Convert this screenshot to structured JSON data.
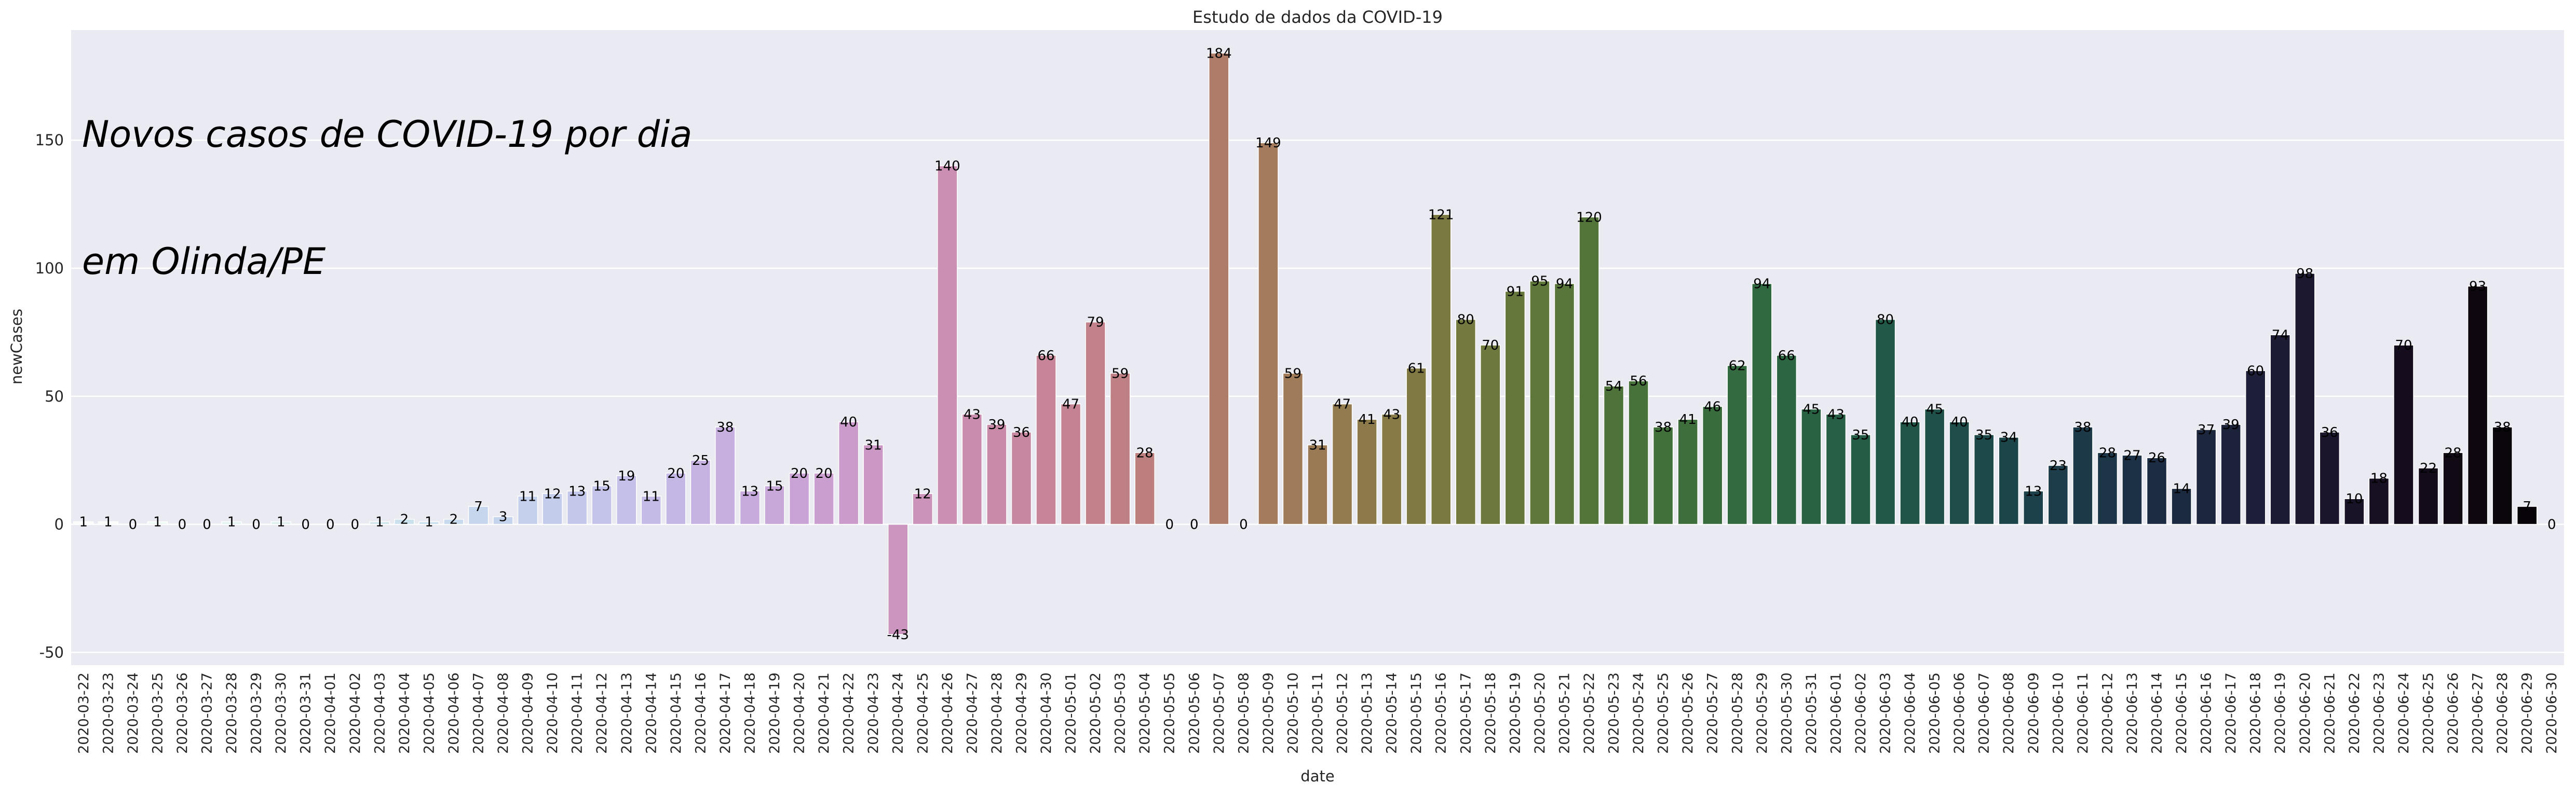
{
  "chart_data": {
    "type": "bar",
    "title": "Estudo de dados da COVID-19",
    "annotation_lines": [
      "Novos casos de COVID-19 por dia",
      "em Olinda/PE"
    ],
    "xlabel": "date",
    "ylabel": "newCases",
    "ylim": [
      -55,
      193
    ],
    "yticks": [
      -50,
      0,
      50,
      100,
      150
    ],
    "grid": true,
    "legend": "none",
    "categories": [
      "2020-03-22",
      "2020-03-23",
      "2020-03-24",
      "2020-03-25",
      "2020-03-26",
      "2020-03-27",
      "2020-03-28",
      "2020-03-29",
      "2020-03-30",
      "2020-03-31",
      "2020-04-01",
      "2020-04-02",
      "2020-04-03",
      "2020-04-04",
      "2020-04-05",
      "2020-04-06",
      "2020-04-07",
      "2020-04-08",
      "2020-04-09",
      "2020-04-10",
      "2020-04-11",
      "2020-04-12",
      "2020-04-13",
      "2020-04-14",
      "2020-04-15",
      "2020-04-16",
      "2020-04-17",
      "2020-04-18",
      "2020-04-19",
      "2020-04-20",
      "2020-04-21",
      "2020-04-22",
      "2020-04-23",
      "2020-04-24",
      "2020-04-25",
      "2020-04-26",
      "2020-04-27",
      "2020-04-28",
      "2020-04-29",
      "2020-04-30",
      "2020-05-01",
      "2020-05-02",
      "2020-05-03",
      "2020-05-04",
      "2020-05-05",
      "2020-05-06",
      "2020-05-07",
      "2020-05-08",
      "2020-05-09",
      "2020-05-10",
      "2020-05-11",
      "2020-05-12",
      "2020-05-13",
      "2020-05-14",
      "2020-05-15",
      "2020-05-16",
      "2020-05-17",
      "2020-05-18",
      "2020-05-19",
      "2020-05-20",
      "2020-05-21",
      "2020-05-22",
      "2020-05-23",
      "2020-05-24",
      "2020-05-25",
      "2020-05-26",
      "2020-05-27",
      "2020-05-28",
      "2020-05-29",
      "2020-05-30",
      "2020-05-31",
      "2020-06-01",
      "2020-06-02",
      "2020-06-03",
      "2020-06-04",
      "2020-06-05",
      "2020-06-06",
      "2020-06-07",
      "2020-06-08",
      "2020-06-09",
      "2020-06-10",
      "2020-06-11",
      "2020-06-12",
      "2020-06-13",
      "2020-06-14",
      "2020-06-15",
      "2020-06-16",
      "2020-06-17",
      "2020-06-18",
      "2020-06-19",
      "2020-06-20",
      "2020-06-21",
      "2020-06-22",
      "2020-06-23",
      "2020-06-24",
      "2020-06-25",
      "2020-06-26",
      "2020-06-27",
      "2020-06-28",
      "2020-06-29",
      "2020-06-30"
    ],
    "values": [
      1,
      1,
      0,
      1,
      0,
      0,
      1,
      0,
      1,
      0,
      0,
      0,
      1,
      2,
      1,
      2,
      7,
      3,
      11,
      12,
      13,
      15,
      19,
      11,
      20,
      25,
      38,
      13,
      15,
      20,
      20,
      40,
      31,
      -43,
      12,
      140,
      43,
      39,
      36,
      66,
      47,
      79,
      59,
      28,
      0,
      0,
      184,
      0,
      149,
      59,
      31,
      47,
      41,
      43,
      61,
      121,
      80,
      70,
      91,
      95,
      94,
      120,
      54,
      56,
      38,
      41,
      46,
      62,
      94,
      66,
      45,
      43,
      35,
      80,
      40,
      45,
      40,
      35,
      34,
      13,
      23,
      38,
      28,
      27,
      26,
      14,
      37,
      39,
      60,
      74,
      98,
      36,
      10,
      18,
      70,
      22,
      28,
      93,
      38,
      7,
      0
    ],
    "palette": "cubehelix (dark navy → green → olive → brown → rose → lavender → light blue → white)"
  }
}
